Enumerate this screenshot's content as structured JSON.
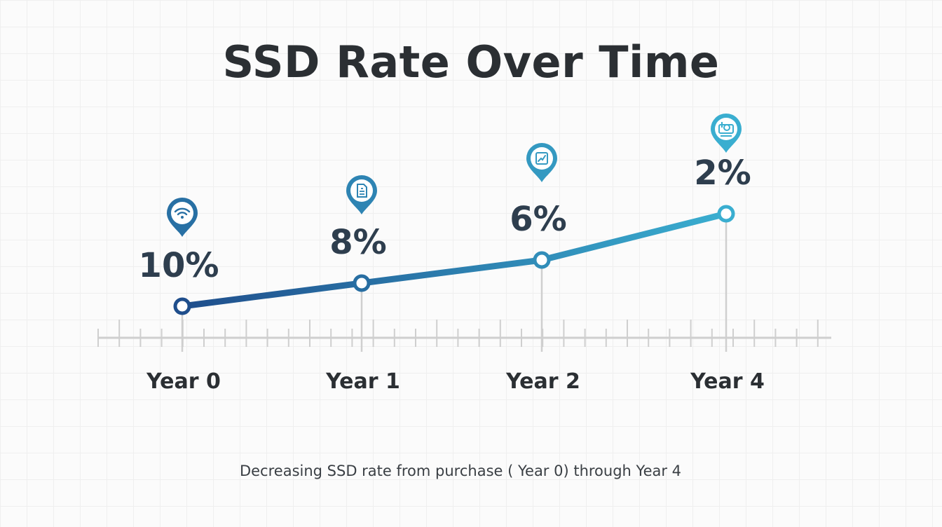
{
  "chart_data": {
    "type": "line",
    "title": "SSD Rate Over Time",
    "subtitle": "Decreasing SSD rate from purchase ( Year 0) through Year 4",
    "categories": [
      "Year 0",
      "Year 1",
      "Year 2",
      "Year 4"
    ],
    "series": [
      {
        "values": [
          10,
          8,
          6,
          2
        ],
        "data_labels": [
          "10%",
          "8%",
          "6%",
          "2%"
        ]
      }
    ],
    "markers": [
      {
        "category": "Year 0",
        "icon": "wifi-icon"
      },
      {
        "category": "Year 1",
        "icon": "document-icon"
      },
      {
        "category": "Year 2",
        "icon": "trend-chart-icon"
      },
      {
        "category": "Year 4",
        "icon": "ssd-drive-icon"
      }
    ],
    "colors": {
      "line_start": "#1f4e8c",
      "line_end": "#3aaed0",
      "axis": "#cfcfcf",
      "marker_fill": "#ffffff"
    },
    "grid": true,
    "legend": "none"
  }
}
